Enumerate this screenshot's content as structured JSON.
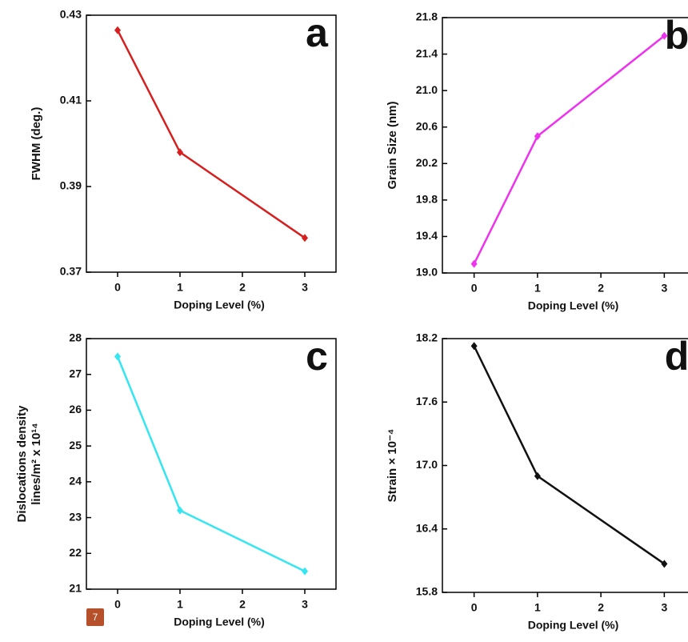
{
  "chart_data": [
    {
      "type": "line",
      "annotation": "a",
      "xlabel": "Doping Level (%)",
      "ylabel": [
        "FWHM (deg.)"
      ],
      "x": [
        0,
        1,
        3
      ],
      "values": [
        0.4265,
        0.398,
        0.378
      ],
      "color": "#d62020",
      "xlim": [
        -0.5,
        3.5
      ],
      "xticks": [
        0,
        1,
        2,
        3
      ],
      "ylim": [
        0.37,
        0.43
      ],
      "yticks": [
        0.37,
        0.39,
        0.41,
        0.43
      ]
    },
    {
      "type": "line",
      "annotation": "b",
      "xlabel": "Doping Level (%)",
      "ylabel": [
        "Grain Size (nm)"
      ],
      "x": [
        0,
        1,
        3
      ],
      "values": [
        19.1,
        20.5,
        21.6
      ],
      "color": "#ee33ee",
      "xlim": [
        -0.5,
        3.5
      ],
      "xticks": [
        0,
        1,
        2,
        3
      ],
      "ylim": [
        19.0,
        21.8
      ],
      "yticks": [
        {
          "value": 19,
          "label": "19.0"
        },
        19.4,
        19.8,
        20.2,
        20.6,
        {
          "value": 21,
          "label": "21.0"
        },
        21.4,
        21.8
      ]
    },
    {
      "type": "line",
      "annotation": "c",
      "xlabel": "Doping Level (%)",
      "ylabel": [
        "Dislocations density",
        "lines/m² x 10¹⁴"
      ],
      "x": [
        0,
        1,
        3
      ],
      "values": [
        27.5,
        23.2,
        21.5
      ],
      "color": "#33e6f0",
      "xlim": [
        -0.5,
        3.5
      ],
      "xticks": [
        0,
        1,
        2,
        3
      ],
      "ylim": [
        21,
        28
      ],
      "yticks": [
        21,
        22,
        23,
        24,
        25,
        26,
        27,
        28
      ]
    },
    {
      "type": "line",
      "annotation": "d",
      "xlabel": "Doping Level (%)",
      "ylabel": [
        "Strain × 10⁻⁴"
      ],
      "x": [
        0,
        1,
        3
      ],
      "values": [
        18.13,
        16.9,
        16.07
      ],
      "color": "#111111",
      "xlim": [
        -0.5,
        3.5
      ],
      "xticks": [
        0,
        1,
        2,
        3
      ],
      "ylim": [
        15.8,
        18.2
      ],
      "yticks": [
        15.8,
        16.4,
        {
          "value": 17,
          "label": "17.0"
        },
        17.6,
        18.2
      ]
    }
  ],
  "badge": "7"
}
